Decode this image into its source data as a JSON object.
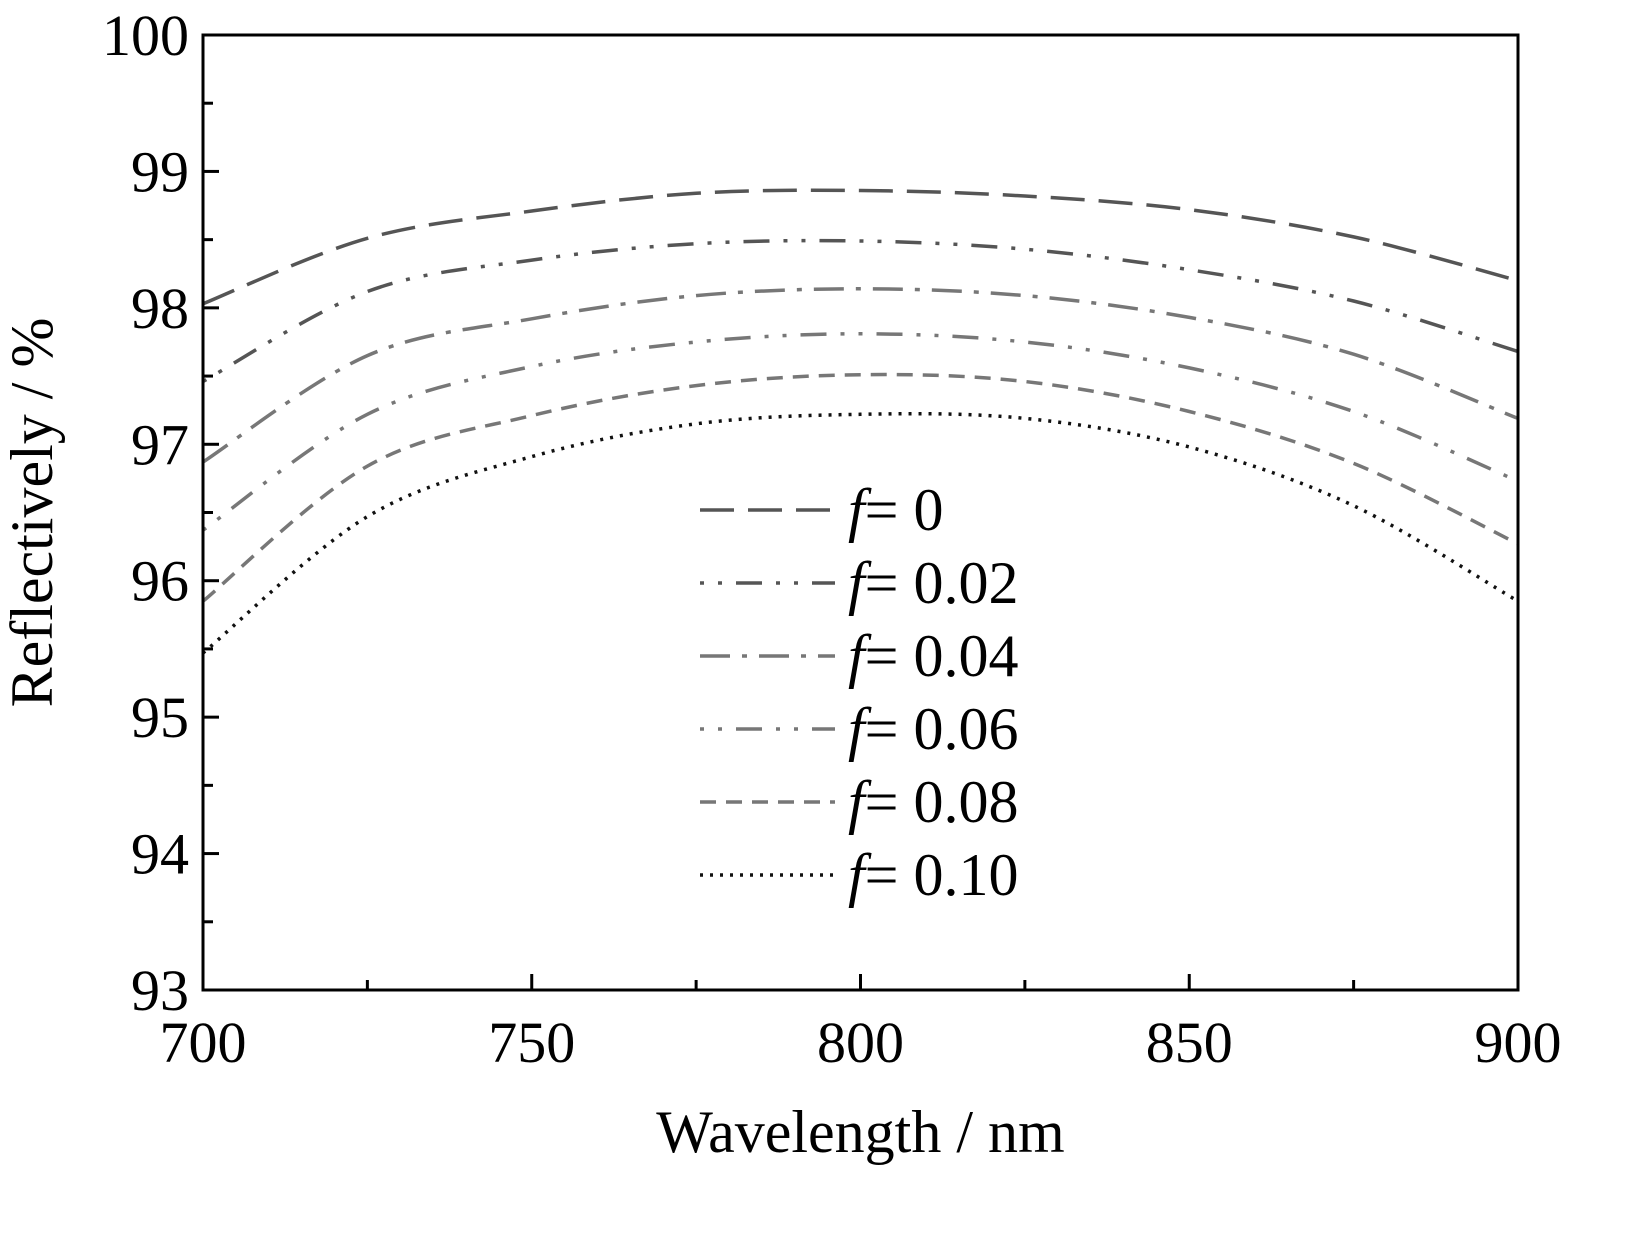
{
  "chart_data": {
    "type": "line",
    "xlabel": "Wavelength / nm",
    "ylabel": "Reflectively / %",
    "xlim": [
      700,
      900
    ],
    "ylim": [
      93,
      100
    ],
    "xticks": [
      "700",
      "750",
      "800",
      "850",
      "900"
    ],
    "yticks": [
      "93",
      "94",
      "95",
      "96",
      "97",
      "98",
      "99",
      "100"
    ],
    "x": [
      700,
      725,
      750,
      775,
      800,
      825,
      850,
      875,
      900
    ],
    "legend_position": "center",
    "series": [
      {
        "name_prefix": "f",
        "name_suffix": "= 0",
        "style": "long-dash",
        "color": "#555555",
        "values": [
          98.03,
          98.51,
          98.71,
          98.84,
          98.86,
          98.82,
          98.72,
          98.52,
          98.2
        ]
      },
      {
        "name_prefix": "f",
        "name_suffix": "= 0.02",
        "style": "dash-dot-dot",
        "color": "#555555",
        "values": [
          97.46,
          98.12,
          98.35,
          98.47,
          98.49,
          98.43,
          98.28,
          98.05,
          97.68
        ]
      },
      {
        "name_prefix": "f",
        "name_suffix": "= 0.04",
        "style": "dash-dot",
        "color": "#777777",
        "values": [
          96.87,
          97.65,
          97.92,
          98.09,
          98.14,
          98.09,
          97.93,
          97.66,
          97.19
        ]
      },
      {
        "name_prefix": "f",
        "name_suffix": "= 0.06",
        "style": "dash-dot-dot",
        "color": "#777777",
        "values": [
          96.37,
          97.22,
          97.57,
          97.75,
          97.81,
          97.75,
          97.56,
          97.24,
          96.73
        ]
      },
      {
        "name_prefix": "f",
        "name_suffix": "= 0.08",
        "style": "short-dash",
        "color": "#777777",
        "values": [
          95.85,
          96.84,
          97.21,
          97.43,
          97.51,
          97.46,
          97.24,
          96.86,
          96.27
        ]
      },
      {
        "name_prefix": "f",
        "name_suffix": "= 0.10",
        "style": "dotted",
        "color": "#111111",
        "values": [
          95.47,
          96.47,
          96.91,
          97.15,
          97.22,
          97.19,
          96.98,
          96.55,
          95.85
        ]
      }
    ]
  }
}
